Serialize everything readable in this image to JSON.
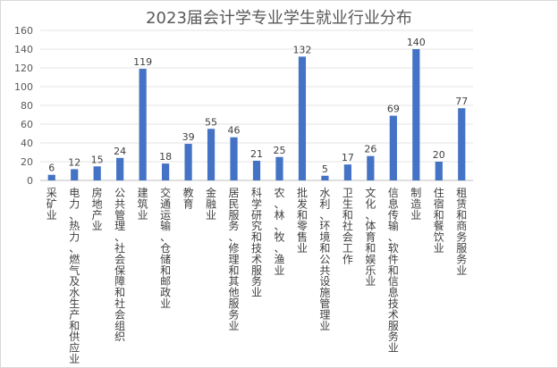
{
  "chart_data": {
    "type": "bar",
    "title": "2023届会计学专业学生就业行业分布",
    "xlabel": "",
    "ylabel": "",
    "ylim": [
      0,
      160
    ],
    "yticks": [
      0,
      20,
      40,
      60,
      80,
      100,
      120,
      140,
      160
    ],
    "grid": true,
    "legend": "none",
    "bar_color": "#4472c4",
    "categories": [
      "采矿业",
      "电力、热力、燃气及水生产和供应业",
      "房地产业",
      "公共管理、社会保障和社会组织",
      "建筑业",
      "交通运输、仓储和邮政业",
      "教育",
      "金融业",
      "居民服务、修理和其他服务业",
      "科学研究和技术服务业",
      "农、林、牧、渔业",
      "批发和零售业",
      "水利、环境和公共设施管理业",
      "卫生和社会工作",
      "文化、体育和娱乐业",
      "信息传输、软件和信息技术服务业",
      "制造业",
      "住宿和餐饮业",
      "租赁和商务服务业"
    ],
    "values": [
      6,
      12,
      15,
      24,
      119,
      18,
      39,
      55,
      46,
      21,
      25,
      132,
      5,
      17,
      26,
      69,
      140,
      20,
      77
    ]
  }
}
